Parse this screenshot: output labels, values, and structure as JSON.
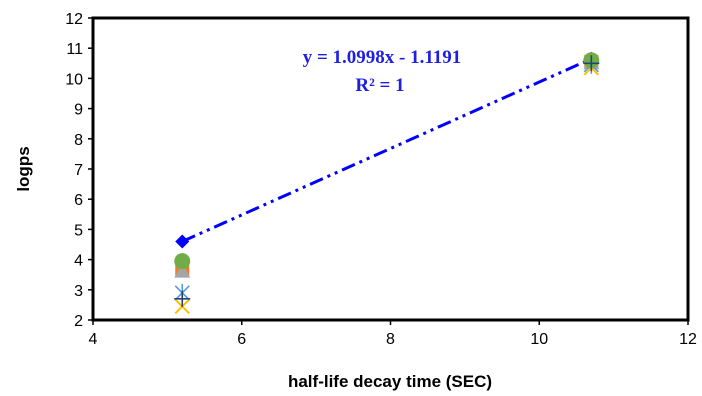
{
  "chart_data": {
    "type": "scatter",
    "title": "",
    "xlabel": "half-life decay time (SEC)",
    "ylabel": "logps",
    "xlim": [
      4,
      12
    ],
    "ylim": [
      2,
      12
    ],
    "xticks": [
      4,
      6,
      8,
      10,
      12
    ],
    "yticks": [
      2,
      3,
      4,
      5,
      6,
      7,
      8,
      9,
      10,
      11,
      12
    ],
    "grid": false,
    "legend": "none",
    "series": [
      {
        "marker": "diamond",
        "color": "#0000ff",
        "x": [
          5.2,
          10.7
        ],
        "y": [
          4.6,
          10.65
        ]
      },
      {
        "marker": "square",
        "color": "#ed7d31",
        "x": [
          5.2,
          10.7
        ],
        "y": [
          3.7,
          10.55
        ]
      },
      {
        "marker": "triangle",
        "color": "#a5a5a5",
        "x": [
          5.2,
          10.7
        ],
        "y": [
          3.6,
          10.5
        ]
      },
      {
        "marker": "x",
        "color": "#ffc000",
        "x": [
          5.2,
          10.7
        ],
        "y": [
          2.45,
          10.35
        ]
      },
      {
        "marker": "star",
        "color": "#5b9bd5",
        "x": [
          5.2,
          10.7
        ],
        "y": [
          2.9,
          10.45
        ]
      },
      {
        "marker": "circle",
        "color": "#70ad47",
        "x": [
          5.2,
          10.7
        ],
        "y": [
          3.95,
          10.6
        ]
      },
      {
        "marker": "plus",
        "color": "#264478",
        "x": [
          5.2,
          10.7
        ],
        "y": [
          2.7,
          10.5
        ]
      }
    ],
    "trendline": {
      "color": "#0000ff",
      "style": "dash-dot-dot",
      "x": [
        5.2,
        10.7
      ],
      "equation": "y = 1.0998x - 1.1191",
      "r2": "R² = 1"
    }
  }
}
